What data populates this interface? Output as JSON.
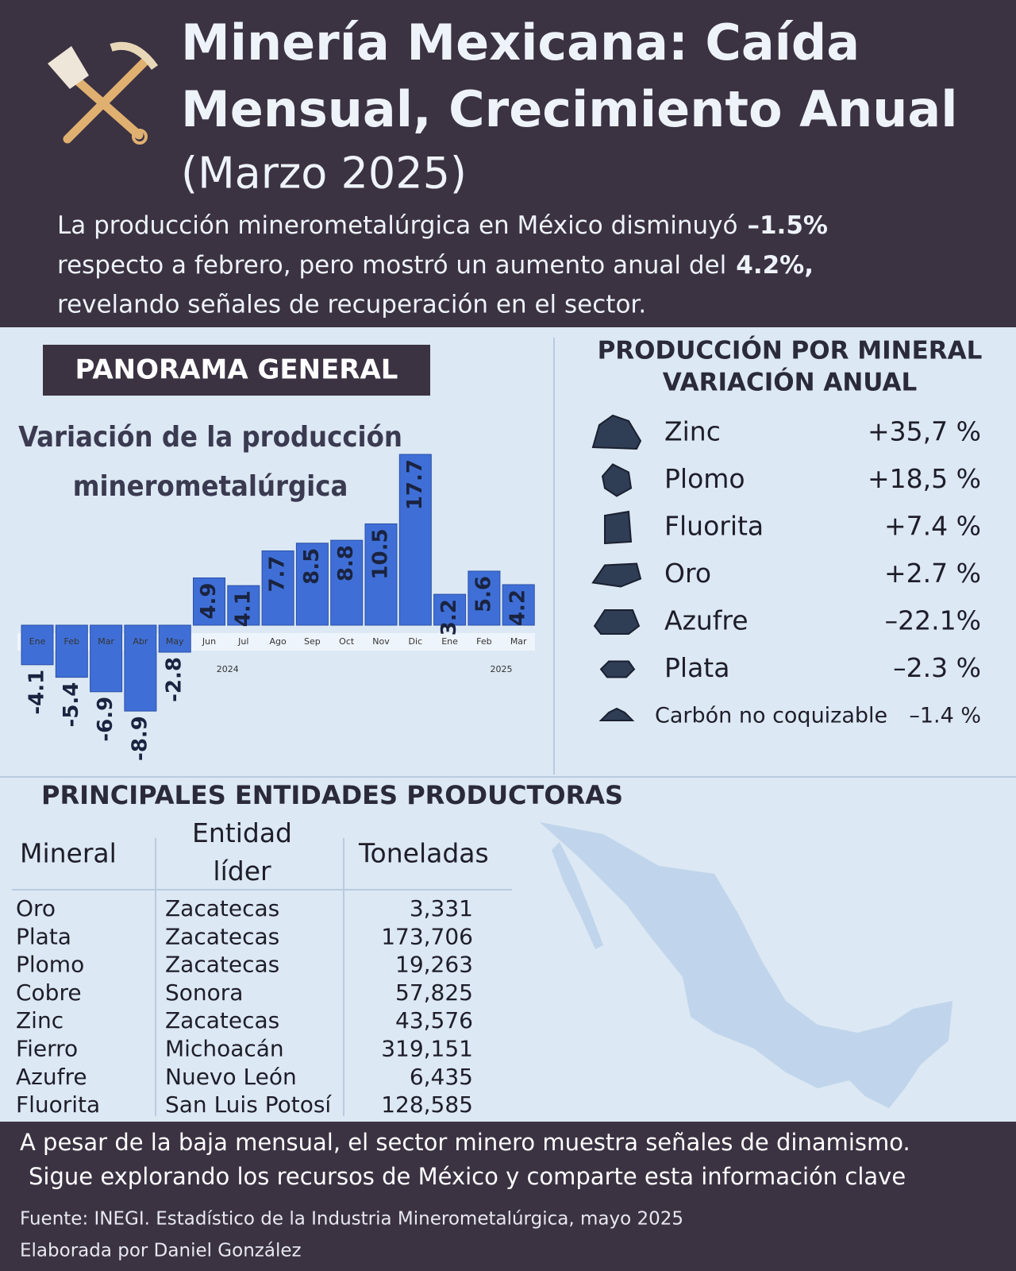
{
  "header": {
    "title_lines": [
      "Minería Mexicana: Caída",
      "Mensual, Crecimiento Anual"
    ],
    "subtitle": "(Marzo 2025)",
    "intro": [
      "La producción minerometalúrgica en México disminuyó",
      "–1.5%",
      "respecto a febrero, pero mostró un aumento anual del",
      "4.2%,",
      "revelando señales de recuperación en el sector."
    ]
  },
  "panorama": "PANORAMA GENERAL",
  "chart_data": {
    "type": "bar",
    "title": "Variación de la producción minerometalúrgica",
    "categories": [
      "Ene",
      "Feb",
      "Mar",
      "Abr",
      "May",
      "Jun",
      "Jul",
      "Ago",
      "Sep",
      "Oct",
      "Nov",
      "Dic",
      "Ene",
      "Feb",
      "Mar"
    ],
    "values": [
      -4.1,
      -5.4,
      -6.9,
      -8.9,
      -2.8,
      4.9,
      4.1,
      7.7,
      8.5,
      8.8,
      10.5,
      17.7,
      3.2,
      5.6,
      4.2
    ],
    "years": [
      "2024",
      "2025"
    ],
    "color": "#3f6fd6"
  },
  "minerals": {
    "heading": [
      "PRODUCCIÓN POR MINERAL",
      "VARIACIÓN ANUAL"
    ],
    "rows": [
      {
        "name": "Zinc",
        "change": "+35,7 %"
      },
      {
        "name": "Plomo",
        "change": "+18,5 %"
      },
      {
        "name": "Fluorita",
        "change": "+7.4 %"
      },
      {
        "name": "Oro",
        "change": "+2.7 %"
      },
      {
        "name": "Azufre",
        "change": "–22.1%"
      },
      {
        "name": "Plata",
        "change": "–2.3 %"
      },
      {
        "name": "Carbón no coquizable",
        "change": "–1.4 %"
      }
    ]
  },
  "table": {
    "title": "PRINCIPALES ENTIDADES PRODUCTORAS",
    "header": [
      "Mineral",
      "Entidad líder",
      "Toneladas"
    ],
    "rows": [
      [
        "Oro",
        "Zacatecas",
        "3,331"
      ],
      [
        "Plata",
        "Zacatecas",
        "173,706"
      ],
      [
        "Plomo",
        "Zacatecas",
        "19,263"
      ],
      [
        "Cobre",
        "Sonora",
        "57,825"
      ],
      [
        "Zinc",
        "Zacatecas",
        "43,576"
      ],
      [
        "Fierro",
        "Michoacán",
        "319,151"
      ],
      [
        "Azufre",
        "Nuevo León",
        "6,435"
      ],
      [
        "Fluorita",
        "San Luis Potosí",
        "128,585"
      ]
    ]
  },
  "footer": {
    "lines": [
      "A pesar de la baja mensual, el sector minero muestra señales de dinamismo.",
      "Sigue explorando los recursos de México y comparte esta información clave"
    ],
    "source": "Fuente: INEGI. Estadístico de la Industria Minerometalúrgica, mayo 2025",
    "credit": "Elaborada por Daniel González"
  }
}
